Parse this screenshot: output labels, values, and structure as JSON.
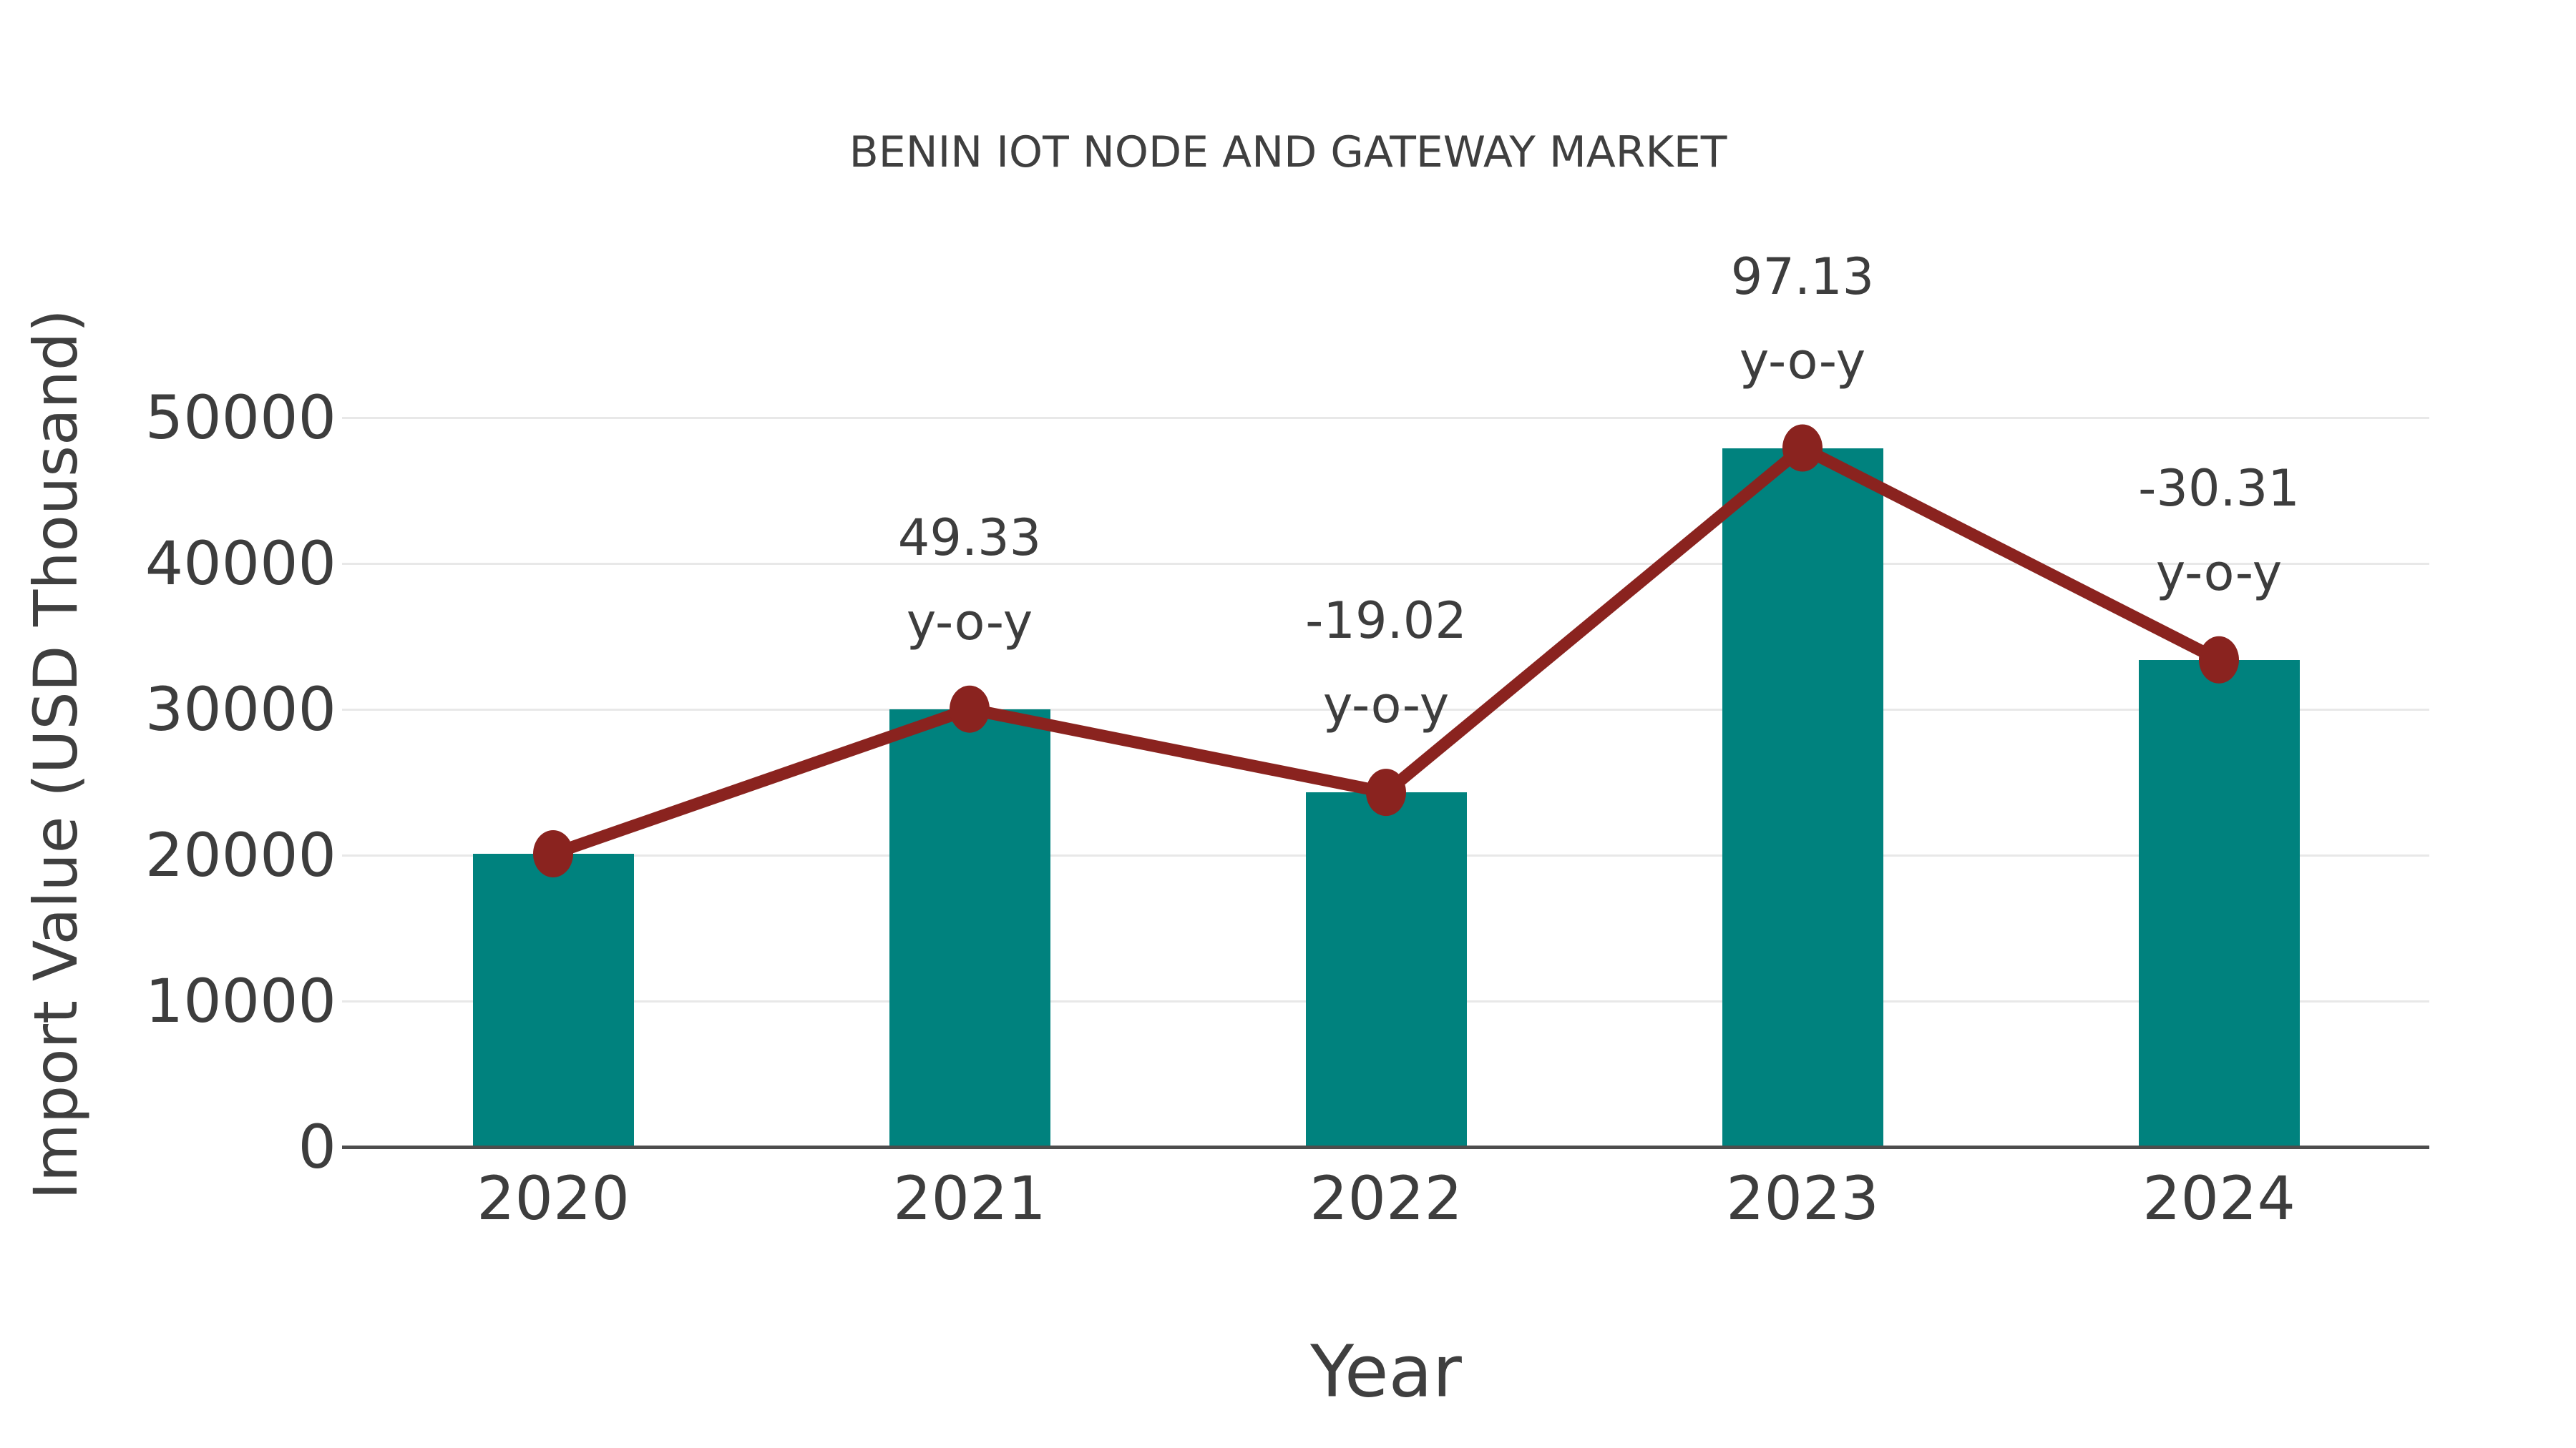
{
  "page": {
    "background_color": "#ffffff"
  },
  "chart": {
    "title": "BENIN IOT NODE AND GATEWAY MARKET",
    "xlabel": "Year",
    "ylabel": "Import Value (USD Thousand)"
  },
  "chart_data": {
    "type": "bar",
    "title": "BENIN IOT NODE AND GATEWAY MARKET",
    "xlabel": "Year",
    "ylabel": "Import Value (USD Thousand)",
    "categories": [
      "2020",
      "2021",
      "2022",
      "2023",
      "2024"
    ],
    "series": [
      {
        "name": "Import Value (USD Thousand)",
        "type": "bar",
        "color": "#00827e",
        "values": [
          20100,
          30015,
          24306,
          47915,
          33392
        ]
      },
      {
        "name": "y-o-y change (%)",
        "type": "line",
        "color": "#8a231f",
        "values": [
          null,
          49.33,
          -19.02,
          97.13,
          -30.31
        ]
      }
    ],
    "annotations": [
      {
        "category": "2021",
        "value_label": "49.33",
        "suffix_label": "y-o-y"
      },
      {
        "category": "2022",
        "value_label": "-19.02",
        "suffix_label": "y-o-y"
      },
      {
        "category": "2023",
        "value_label": "97.13",
        "suffix_label": "y-o-y"
      },
      {
        "category": "2024",
        "value_label": "-30.31",
        "suffix_label": "y-o-y"
      }
    ],
    "yticks": [
      0,
      10000,
      20000,
      30000,
      40000,
      50000
    ],
    "ylim": [
      0,
      57000
    ],
    "grid": "horizontal",
    "gridline_color": "#e8e8e8",
    "axis_line_color": "#4d4d4d",
    "text_color": "#3d3d3d",
    "legend": "none",
    "marker_style": "filled-circle"
  }
}
